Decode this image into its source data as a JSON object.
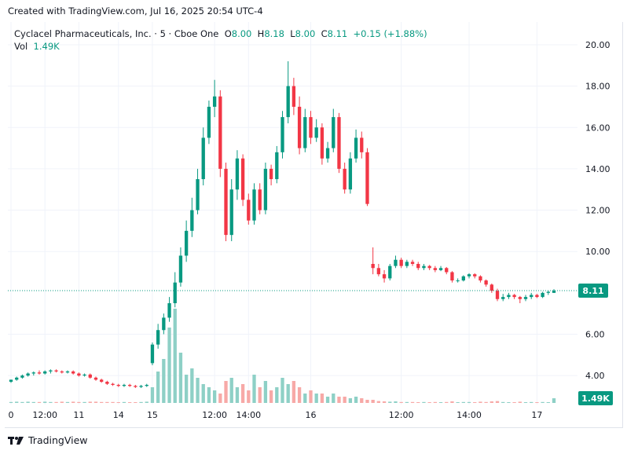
{
  "credit": "Created with TradingView.com, Jul 16, 2025 20:54 UTC-4",
  "legend": {
    "symbol": "Cyclacel Pharmaceuticals, Inc. · 5 · Cboe One",
    "o_label": "O",
    "o": "8.00",
    "h_label": "H",
    "h": "8.18",
    "l_label": "L",
    "l": "8.00",
    "c_label": "C",
    "c": "8.11",
    "change": "+0.15 (+1.88%)",
    "vol_label": "Vol",
    "vol": "1.49K"
  },
  "last_price_label": "8.11",
  "last_volume_label": "1.49K",
  "brand": "TradingView",
  "colors": {
    "up": "#089981",
    "down": "#f23645",
    "up_vol": "#8ed0c6",
    "down_vol": "#f7a9a7"
  },
  "chart_data": {
    "type": "candlestick",
    "ylim": [
      2.6,
      21.1
    ],
    "yticks": [
      "20.00",
      "18.00",
      "16.00",
      "14.00",
      "12.00",
      "10.00",
      "6.00",
      "4.00"
    ],
    "xticks": [
      {
        "bar": 0,
        "label": "0"
      },
      {
        "bar": 6,
        "label": "12:00"
      },
      {
        "bar": 12,
        "label": "11"
      },
      {
        "bar": 19,
        "label": "14"
      },
      {
        "bar": 25,
        "label": "15"
      },
      {
        "bar": 36,
        "label": "12:00"
      },
      {
        "bar": 42,
        "label": "14:00"
      },
      {
        "bar": 53,
        "label": "16"
      },
      {
        "bar": 69,
        "label": "12:00"
      },
      {
        "bar": 81,
        "label": "14:00"
      },
      {
        "bar": 93,
        "label": "17"
      }
    ],
    "last_price": 8.11,
    "candles": [
      [
        3.7,
        3.8,
        3.65,
        3.8,
        0.3
      ],
      [
        3.8,
        3.95,
        3.75,
        3.9,
        0.4
      ],
      [
        3.9,
        4.05,
        3.85,
        4.0,
        0.3
      ],
      [
        4.0,
        4.15,
        3.95,
        4.1,
        0.4
      ],
      [
        4.1,
        4.2,
        4.0,
        4.15,
        0.3
      ],
      [
        4.15,
        4.25,
        4.05,
        4.1,
        0.3
      ],
      [
        4.1,
        4.25,
        4.05,
        4.2,
        0.4
      ],
      [
        4.2,
        4.3,
        4.1,
        4.25,
        0.3
      ],
      [
        4.25,
        4.3,
        4.15,
        4.2,
        0.3
      ],
      [
        4.2,
        4.25,
        4.1,
        4.15,
        0.4
      ],
      [
        4.15,
        4.25,
        4.1,
        4.2,
        0.3
      ],
      [
        4.2,
        4.25,
        4.05,
        4.1,
        0.4
      ],
      [
        4.1,
        4.15,
        3.95,
        4.0,
        0.3
      ],
      [
        4.0,
        4.1,
        3.95,
        4.05,
        0.3
      ],
      [
        4.05,
        4.1,
        3.85,
        3.9,
        0.4
      ],
      [
        3.9,
        3.95,
        3.75,
        3.8,
        0.4
      ],
      [
        3.8,
        3.85,
        3.65,
        3.7,
        0.3
      ],
      [
        3.7,
        3.75,
        3.55,
        3.6,
        0.3
      ],
      [
        3.6,
        3.65,
        3.5,
        3.55,
        0.3
      ],
      [
        3.55,
        3.6,
        3.45,
        3.5,
        0.2
      ],
      [
        3.5,
        3.6,
        3.45,
        3.55,
        0.3
      ],
      [
        3.55,
        3.6,
        3.45,
        3.5,
        0.2
      ],
      [
        3.5,
        3.55,
        3.4,
        3.45,
        0.2
      ],
      [
        3.45,
        3.55,
        3.4,
        3.5,
        0.3
      ],
      [
        3.5,
        3.6,
        3.45,
        3.55,
        0.4
      ],
      [
        4.6,
        5.6,
        4.5,
        5.5,
        5
      ],
      [
        5.5,
        6.5,
        5.3,
        6.2,
        10
      ],
      [
        6.2,
        7.0,
        6.0,
        6.8,
        14
      ],
      [
        6.8,
        7.8,
        6.6,
        7.5,
        24
      ],
      [
        7.5,
        9.0,
        7.3,
        8.5,
        30
      ],
      [
        8.5,
        10.2,
        8.3,
        9.8,
        16
      ],
      [
        9.8,
        11.5,
        9.5,
        11.0,
        9
      ],
      [
        11.0,
        12.6,
        10.7,
        12.0,
        11
      ],
      [
        12.0,
        14.0,
        11.8,
        13.5,
        8
      ],
      [
        13.5,
        16.0,
        13.2,
        15.5,
        6
      ],
      [
        15.5,
        17.3,
        15.2,
        17.0,
        5
      ],
      [
        17.0,
        18.3,
        16.5,
        17.5,
        4
      ],
      [
        17.5,
        17.8,
        13.6,
        14.0,
        3
      ],
      [
        14.0,
        14.3,
        10.5,
        10.8,
        7
      ],
      [
        10.8,
        13.5,
        10.5,
        13.0,
        8
      ],
      [
        13.0,
        14.9,
        12.5,
        14.5,
        5
      ],
      [
        14.5,
        14.7,
        12.2,
        12.5,
        6
      ],
      [
        12.5,
        12.8,
        11.3,
        11.5,
        4
      ],
      [
        11.5,
        13.3,
        11.3,
        13.0,
        9
      ],
      [
        13.0,
        13.3,
        11.8,
        12.0,
        5
      ],
      [
        12.0,
        14.3,
        11.8,
        14.0,
        7
      ],
      [
        14.0,
        14.2,
        13.2,
        13.5,
        4
      ],
      [
        13.5,
        15.1,
        13.3,
        14.8,
        5
      ],
      [
        14.8,
        16.8,
        14.5,
        16.5,
        8
      ],
      [
        16.5,
        19.2,
        16.2,
        18.0,
        6
      ],
      [
        18.0,
        18.4,
        16.6,
        17.0,
        7
      ],
      [
        17.0,
        17.5,
        14.7,
        15.0,
        5
      ],
      [
        15.0,
        16.9,
        14.8,
        16.5,
        3
      ],
      [
        16.5,
        16.8,
        15.2,
        15.5,
        4
      ],
      [
        15.5,
        16.4,
        15.3,
        16.0,
        3
      ],
      [
        16.0,
        16.2,
        14.2,
        14.5,
        3
      ],
      [
        14.5,
        15.3,
        14.3,
        15.0,
        2
      ],
      [
        15.0,
        16.9,
        14.8,
        16.5,
        3
      ],
      [
        16.5,
        16.7,
        13.8,
        14.0,
        2
      ],
      [
        14.0,
        14.3,
        12.8,
        13.0,
        2
      ],
      [
        13.0,
        14.8,
        12.8,
        14.5,
        1.5
      ],
      [
        14.5,
        15.9,
        14.3,
        15.5,
        2
      ],
      [
        15.5,
        15.8,
        14.5,
        14.8,
        1.5
      ],
      [
        14.8,
        15.0,
        12.2,
        12.3,
        1
      ],
      [
        9.4,
        10.2,
        8.9,
        9.2,
        1
      ],
      [
        9.2,
        9.4,
        8.8,
        8.9,
        0.6
      ],
      [
        8.9,
        9.1,
        8.5,
        8.7,
        0.5
      ],
      [
        8.7,
        9.4,
        8.6,
        9.3,
        0.4
      ],
      [
        9.3,
        9.8,
        9.2,
        9.6,
        0.5
      ],
      [
        9.6,
        9.7,
        9.2,
        9.3,
        0.3
      ],
      [
        9.3,
        9.6,
        9.2,
        9.5,
        0.3
      ],
      [
        9.5,
        9.6,
        9.3,
        9.4,
        0.3
      ],
      [
        9.4,
        9.5,
        9.1,
        9.2,
        0.2
      ],
      [
        9.2,
        9.4,
        9.1,
        9.3,
        0.3
      ],
      [
        9.3,
        9.35,
        9.1,
        9.2,
        0.2
      ],
      [
        9.2,
        9.3,
        9.0,
        9.1,
        0.3
      ],
      [
        9.1,
        9.3,
        9.05,
        9.2,
        0.2
      ],
      [
        9.2,
        9.25,
        8.9,
        9.0,
        0.3
      ],
      [
        9.0,
        9.05,
        8.5,
        8.6,
        0.5
      ],
      [
        8.6,
        8.7,
        8.5,
        8.6,
        0.2
      ],
      [
        8.6,
        8.85,
        8.55,
        8.8,
        0.3
      ],
      [
        8.8,
        8.95,
        8.7,
        8.9,
        0.3
      ],
      [
        8.9,
        8.95,
        8.7,
        8.8,
        0.2
      ],
      [
        8.8,
        8.85,
        8.5,
        8.6,
        0.4
      ],
      [
        8.6,
        8.65,
        8.3,
        8.4,
        0.3
      ],
      [
        8.4,
        8.45,
        8.0,
        8.1,
        0.5
      ],
      [
        8.1,
        8.2,
        7.6,
        7.7,
        0.6
      ],
      [
        7.7,
        7.95,
        7.6,
        7.8,
        0.3
      ],
      [
        7.8,
        8.0,
        7.7,
        7.9,
        0.2
      ],
      [
        7.9,
        7.95,
        7.7,
        7.8,
        0.2
      ],
      [
        7.8,
        7.85,
        7.5,
        7.7,
        0.4
      ],
      [
        7.7,
        7.9,
        7.6,
        7.8,
        0.2
      ],
      [
        7.8,
        8.0,
        7.7,
        7.9,
        0.3
      ],
      [
        7.9,
        7.95,
        7.75,
        7.8,
        0.2
      ],
      [
        7.8,
        8.05,
        7.75,
        8.0,
        0.3
      ],
      [
        8.0,
        8.1,
        7.9,
        8.05,
        0.2
      ],
      [
        8.0,
        8.18,
        8.0,
        8.11,
        1.49
      ]
    ]
  }
}
